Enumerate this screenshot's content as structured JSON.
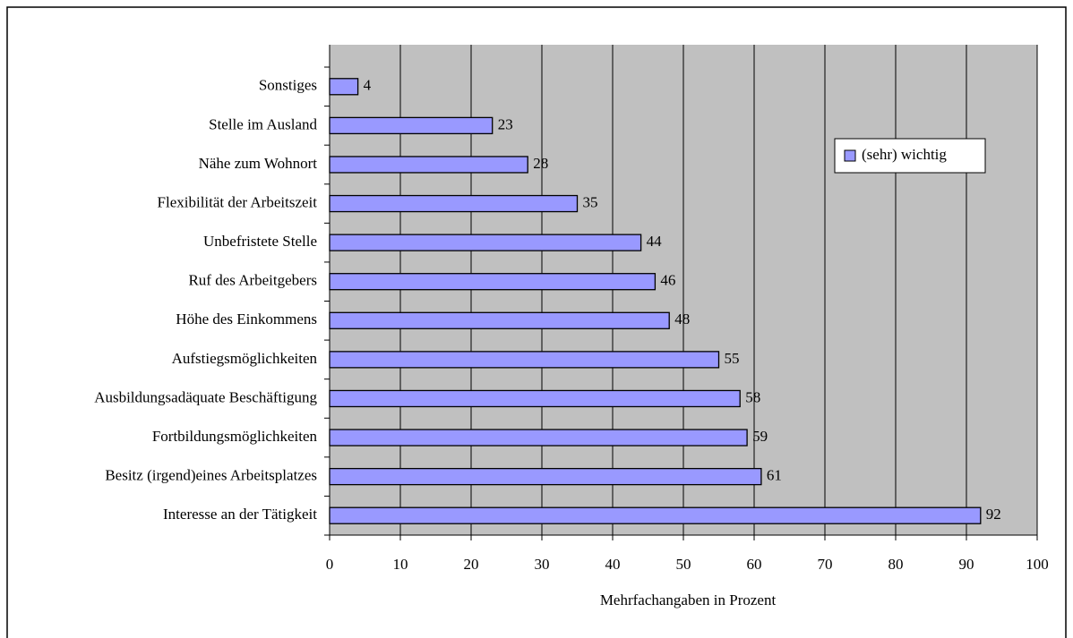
{
  "chart_data": {
    "type": "bar",
    "orientation": "horizontal",
    "x_label": "Mehrfachangaben in Prozent",
    "categories": [
      "Sonstiges",
      "Stelle im Ausland",
      "Nähe zum Wohnort",
      "Flexibilität der Arbeitszeit",
      "Unbefristete Stelle",
      "Ruf des Arbeitgebers",
      "Höhe des Einkommens",
      "Aufstiegsmöglichkeiten",
      "Ausbildungsadäquate Beschäftigung",
      "Fortbildungsmöglichkeiten",
      "Besitz (irgend)eines Arbeitsplatzes",
      "Interesse an der Tätigkeit"
    ],
    "series": [
      {
        "name": "(sehr) wichtig",
        "color": "#9999ff",
        "values": [
          4,
          23,
          28,
          35,
          44,
          46,
          48,
          55,
          58,
          59,
          61,
          92
        ]
      }
    ],
    "xlim": [
      0,
      100
    ],
    "xticks": [
      0,
      10,
      20,
      30,
      40,
      50,
      60,
      70,
      80,
      90,
      100
    ],
    "grid": true,
    "legend": "upper right"
  }
}
